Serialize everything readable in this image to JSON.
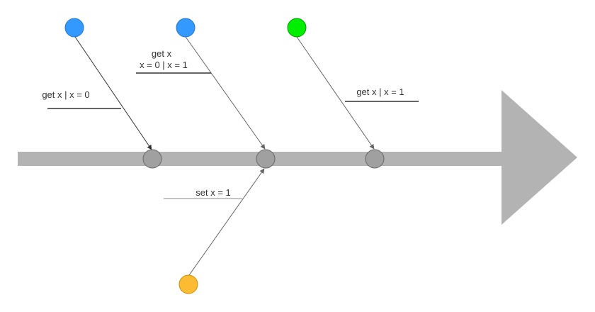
{
  "diagram": {
    "type": "fishbone-timeline",
    "colors": {
      "spine": "#b3b3b3",
      "arrow_head": "#b3b3b3",
      "event_node": "#a0a0a0",
      "event_node_border": "#666666",
      "underline": "#333333",
      "connector": "#666666",
      "blue_actor": "#3399ff",
      "green_actor": "#00ee00",
      "orange_actor": "#fbbc33"
    },
    "labels": {
      "left_read": "get x | x = 0",
      "middle_read_line1": "get x",
      "middle_read_line2": "x = 0 | x = 1",
      "right_read": "get x | x = 1",
      "write": "set x = 1"
    },
    "actors": [
      {
        "id": "reader-1",
        "color_name": "blue",
        "role": "read"
      },
      {
        "id": "reader-2",
        "color_name": "blue",
        "role": "read"
      },
      {
        "id": "reader-3",
        "color_name": "green",
        "role": "read"
      },
      {
        "id": "writer",
        "color_name": "orange",
        "role": "write"
      }
    ]
  }
}
